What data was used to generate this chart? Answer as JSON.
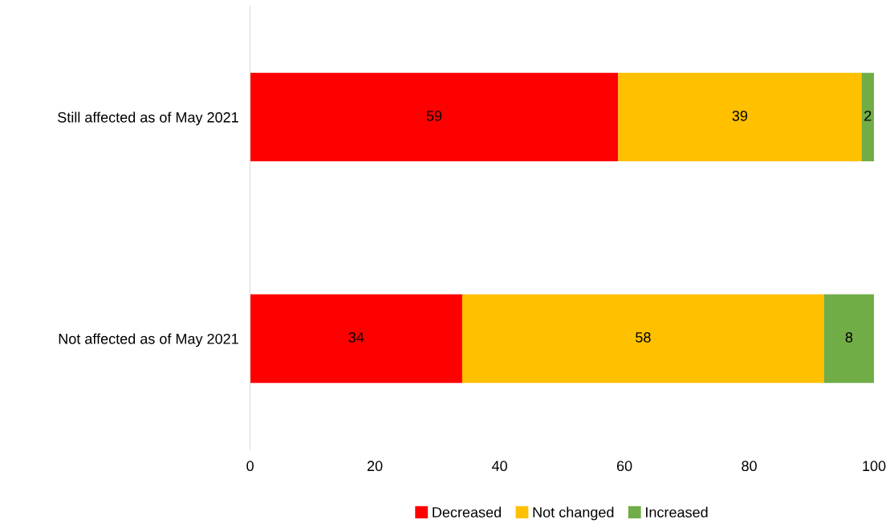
{
  "chart_data": {
    "type": "bar",
    "orientation": "horizontal",
    "stacked": true,
    "categories": [
      "Still affected as of May 2021",
      "Not affected as of May 2021"
    ],
    "series": [
      {
        "name": "Decreased",
        "color": "#ff0000",
        "values": [
          59,
          34
        ]
      },
      {
        "name": "Not changed",
        "color": "#ffc000",
        "values": [
          39,
          58
        ]
      },
      {
        "name": "Increased",
        "color": "#70ad47",
        "values": [
          2,
          8
        ]
      }
    ],
    "xlim": [
      0,
      100
    ],
    "xticks": [
      0,
      20,
      40,
      60,
      80,
      100
    ],
    "grid": false,
    "legend": "bottom",
    "data_labels": true
  }
}
